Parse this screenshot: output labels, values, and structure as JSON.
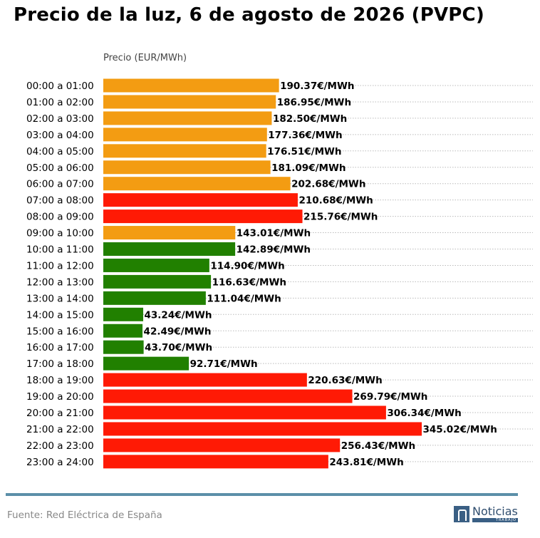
{
  "title": "Precio de la luz, 6 de agosto de 2026 (PVPC)",
  "chart_data": {
    "type": "bar",
    "orientation": "horizontal",
    "ylabel": "Precio (EUR/MWh)",
    "value_suffix": "€/MWh",
    "grid": "dotted horizontal lines",
    "categories": [
      "00:00 a 01:00",
      "01:00 a 02:00",
      "02:00 a 03:00",
      "03:00 a 04:00",
      "04:00 a 05:00",
      "05:00 a 06:00",
      "06:00 a 07:00",
      "07:00 a 08:00",
      "08:00 a 09:00",
      "09:00 a 10:00",
      "10:00 a 11:00",
      "11:00 a 12:00",
      "12:00 a 13:00",
      "13:00 a 14:00",
      "14:00 a 15:00",
      "15:00 a 16:00",
      "16:00 a 17:00",
      "17:00 a 18:00",
      "18:00 a 19:00",
      "19:00 a 20:00",
      "20:00 a 21:00",
      "21:00 a 22:00",
      "22:00 a 23:00",
      "23:00 a 24:00"
    ],
    "values": [
      190.37,
      186.95,
      182.5,
      177.36,
      176.51,
      181.09,
      202.68,
      210.68,
      215.76,
      143.01,
      142.89,
      114.9,
      116.63,
      111.04,
      43.24,
      42.49,
      43.7,
      92.71,
      220.63,
      269.79,
      306.34,
      345.02,
      256.43,
      243.81
    ],
    "bar_colors": [
      "#f39c12",
      "#f39c12",
      "#f39c12",
      "#f39c12",
      "#f39c12",
      "#f39c12",
      "#f39c12",
      "#ff1a05",
      "#ff1a05",
      "#f39c12",
      "#218000",
      "#218000",
      "#218000",
      "#218000",
      "#218000",
      "#218000",
      "#218000",
      "#218000",
      "#ff1a05",
      "#ff1a05",
      "#ff1a05",
      "#ff1a05",
      "#ff1a05",
      "#ff1a05"
    ]
  },
  "footer": {
    "source": "Fuente: Red Eléctrica de España",
    "logo_name": "Noticias",
    "logo_sub": "TRABAJO"
  }
}
